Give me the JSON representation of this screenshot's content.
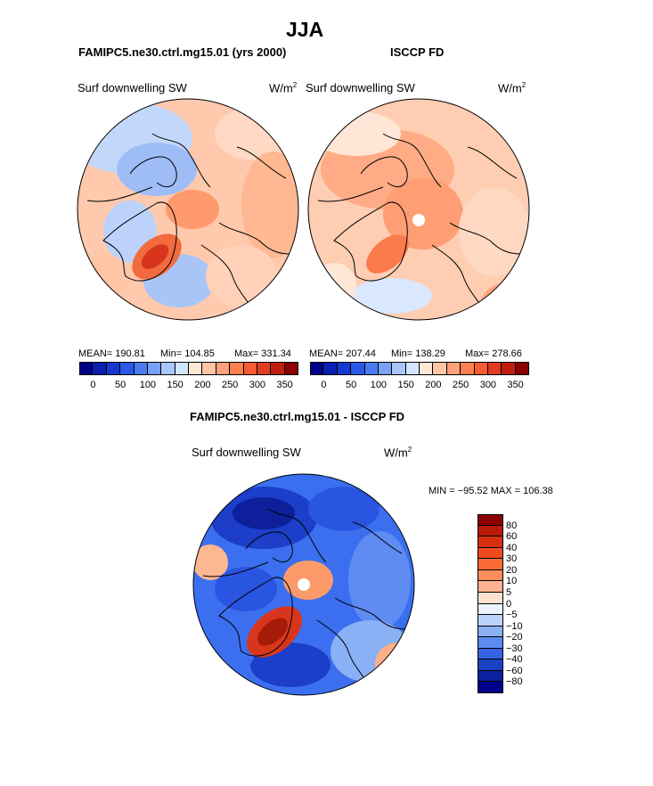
{
  "page": {
    "title": "JJA"
  },
  "panels": [
    {
      "case": "FAMIPC5.ne30.ctrl.mg15.01 (yrs 2000)",
      "variable": "Surf downwelling SW",
      "units_base": "W/m",
      "units_exp": "2",
      "stats": {
        "mean": "MEAN= 190.81",
        "min": "Min= 104.85",
        "max": "Max= 331.34"
      }
    },
    {
      "case": "ISCCP FD",
      "variable": "Surf downwelling SW",
      "units_base": "W/m",
      "units_exp": "2",
      "stats": {
        "mean": "MEAN= 207.44",
        "min": "Min= 138.29",
        "max": "Max= 278.66"
      }
    }
  ],
  "diff": {
    "title": "FAMIPC5.ne30.ctrl.mg15.01 - ISCCP FD",
    "variable": "Surf downwelling SW",
    "units_base": "W/m",
    "units_exp": "2",
    "minmax": "MIN = −95.52 MAX = 106.38"
  },
  "chart_data": [
    {
      "type": "heatmap",
      "projection": "north polar stereographic",
      "title": "FAMIPC5.ne30.ctrl.mg15.01 (yrs 2000)",
      "variable": "Surf downwelling SW (W/m2)",
      "mean": 190.81,
      "min": 104.85,
      "max": 331.34,
      "colorbar": {
        "orientation": "horizontal",
        "tick_labels": [
          "0",
          "50",
          "100",
          "150",
          "200",
          "250",
          "300",
          "350"
        ],
        "colors": [
          "#00008b",
          "#0a1fb0",
          "#1539d0",
          "#2a59e8",
          "#4a7bf0",
          "#7aa2f4",
          "#a8c6fa",
          "#d4e6ff",
          "#ffe6d6",
          "#ffc5a5",
          "#ffa07a",
          "#ff7f50",
          "#f65b32",
          "#e03c20",
          "#c01f10",
          "#8b0000"
        ]
      }
    },
    {
      "type": "heatmap",
      "projection": "north polar stereographic",
      "title": "ISCCP FD",
      "variable": "Surf downwelling SW (W/m2)",
      "mean": 207.44,
      "min": 138.29,
      "max": 278.66,
      "colorbar": {
        "orientation": "horizontal",
        "tick_labels": [
          "0",
          "50",
          "100",
          "150",
          "200",
          "250",
          "300",
          "350"
        ],
        "colors": [
          "#00008b",
          "#0a1fb0",
          "#1539d0",
          "#2a59e8",
          "#4a7bf0",
          "#7aa2f4",
          "#a8c6fa",
          "#d4e6ff",
          "#ffe6d6",
          "#ffc5a5",
          "#ffa07a",
          "#ff7f50",
          "#f65b32",
          "#e03c20",
          "#c01f10",
          "#8b0000"
        ]
      }
    },
    {
      "type": "heatmap",
      "projection": "north polar stereographic",
      "title": "FAMIPC5.ne30.ctrl.mg15.01 - ISCCP FD",
      "variable": "Surf downwelling SW (W/m2)",
      "min": -95.52,
      "max": 106.38,
      "colorbar": {
        "orientation": "vertical",
        "tick_labels": [
          "80",
          "60",
          "40",
          "30",
          "20",
          "10",
          "5",
          "0",
          "−5",
          "−10",
          "−20",
          "−30",
          "−40",
          "−60",
          "−80"
        ],
        "colors": [
          "#8b0000",
          "#b81a0a",
          "#d8300f",
          "#ee4a1e",
          "#fb6a35",
          "#fd8d5a",
          "#feb490",
          "#fde3cf",
          "#eef4ff",
          "#bcd4fb",
          "#8cb1f6",
          "#5b8cf0",
          "#3563e4",
          "#1a40c4",
          "#0a22a0",
          "#00008b"
        ]
      }
    }
  ]
}
